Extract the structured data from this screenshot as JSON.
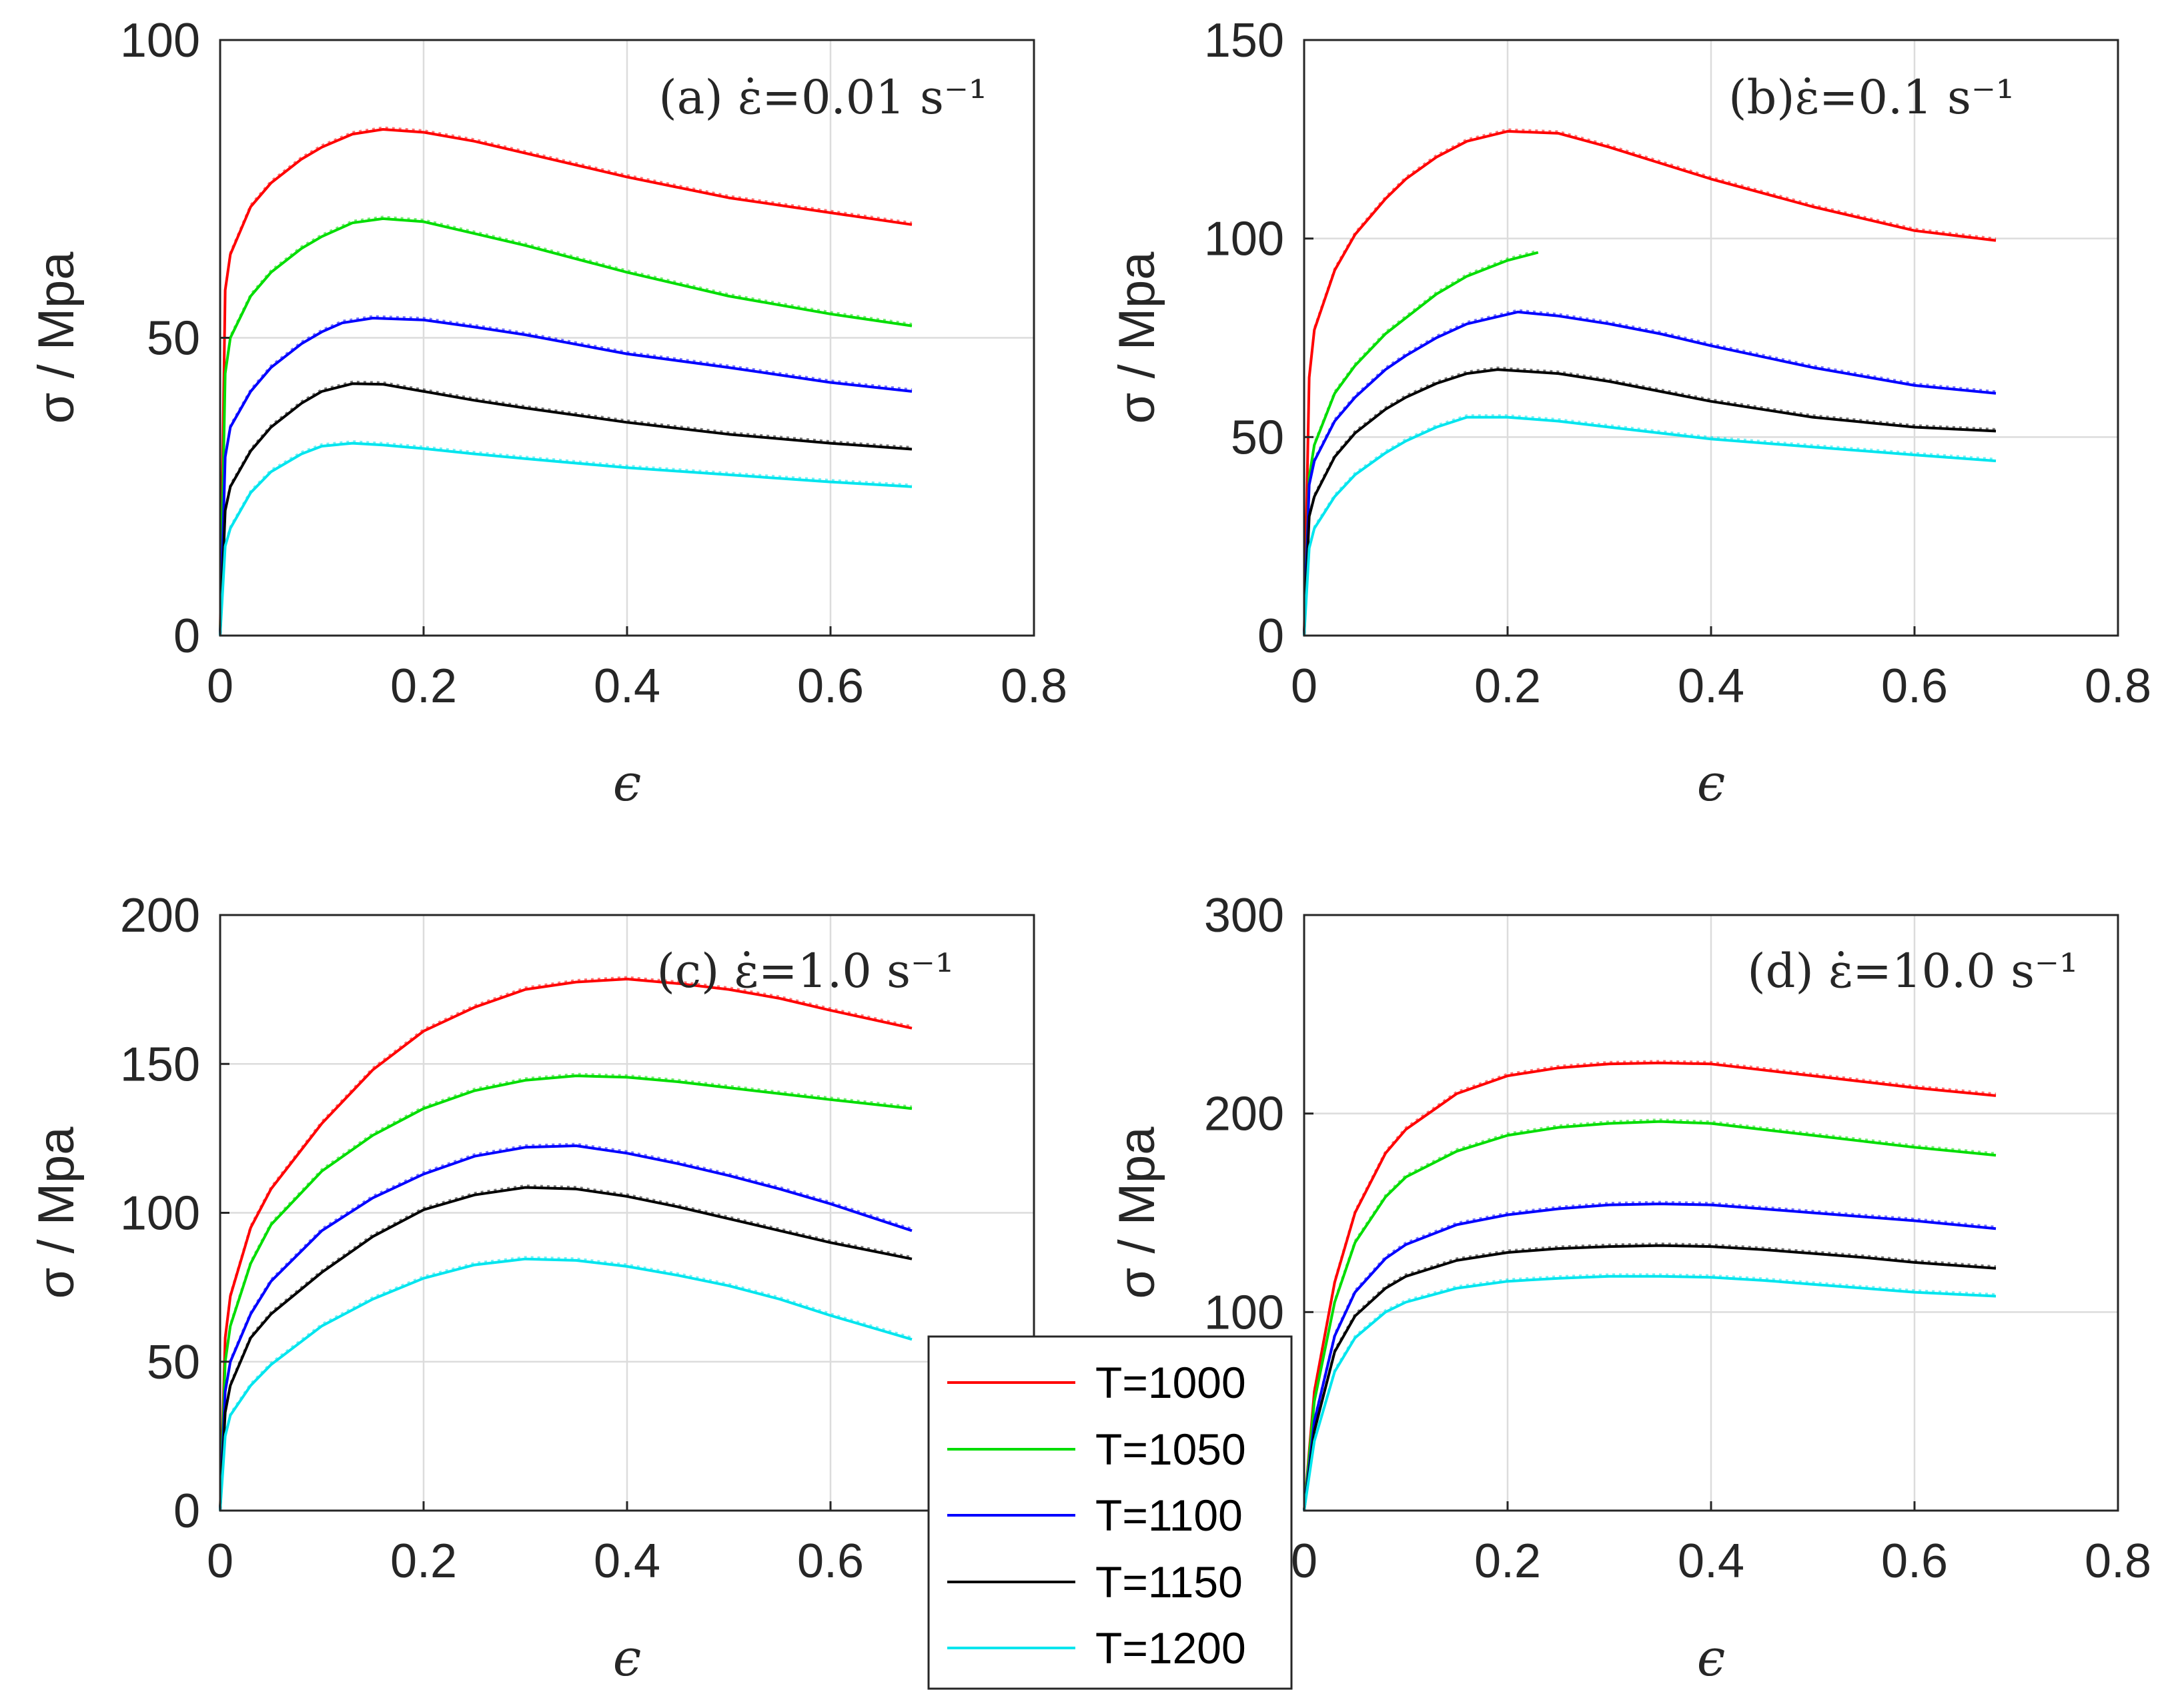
{
  "legend": {
    "entries": [
      {
        "label": "T=1000",
        "color": "#ff0000"
      },
      {
        "label": "T=1050",
        "color": "#00dd00"
      },
      {
        "label": "T=1100",
        "color": "#0000ff"
      },
      {
        "label": "T=1150",
        "color": "#000000"
      },
      {
        "label": "T=1200",
        "color": "#00e5ee"
      }
    ]
  },
  "chart_data": [
    {
      "type": "line",
      "title": "(a) ε̇=0.01 s⁻¹",
      "xlabel": "ϵ",
      "ylabel": "σ / Mpa",
      "xlim": [
        0,
        0.8
      ],
      "ylim": [
        0,
        100
      ],
      "xticks": [
        "0",
        "0.2",
        "0.4",
        "0.6",
        "0.8"
      ],
      "yticks": [
        "0",
        "50",
        "100"
      ],
      "grid": true,
      "series": [
        {
          "name": "T=1000",
          "x": [
            0,
            0.005,
            0.01,
            0.03,
            0.05,
            0.08,
            0.1,
            0.13,
            0.16,
            0.2,
            0.25,
            0.3,
            0.4,
            0.5,
            0.6,
            0.68
          ],
          "y": [
            0,
            58,
            64,
            72,
            76,
            80,
            82,
            84.2,
            85,
            84.5,
            83,
            81,
            77,
            73.5,
            71,
            69
          ]
        },
        {
          "name": "T=1050",
          "x": [
            0,
            0.005,
            0.01,
            0.03,
            0.05,
            0.08,
            0.1,
            0.13,
            0.16,
            0.2,
            0.25,
            0.3,
            0.4,
            0.5,
            0.6,
            0.68
          ],
          "y": [
            0,
            44,
            50,
            57,
            61,
            65,
            67,
            69.3,
            70,
            69.5,
            67.5,
            65.5,
            61,
            57,
            54,
            52
          ]
        },
        {
          "name": "T=1100",
          "x": [
            0,
            0.005,
            0.01,
            0.03,
            0.05,
            0.08,
            0.1,
            0.12,
            0.15,
            0.2,
            0.25,
            0.3,
            0.4,
            0.5,
            0.6,
            0.68
          ],
          "y": [
            0,
            30,
            35,
            41,
            45,
            49,
            51,
            52.5,
            53.3,
            53,
            51.8,
            50.5,
            47.3,
            45,
            42.5,
            41
          ]
        },
        {
          "name": "T=1150",
          "x": [
            0,
            0.005,
            0.01,
            0.03,
            0.05,
            0.08,
            0.1,
            0.13,
            0.16,
            0.2,
            0.25,
            0.3,
            0.4,
            0.5,
            0.6,
            0.68
          ],
          "y": [
            0,
            21,
            25,
            31,
            35,
            39,
            41,
            42.3,
            42.2,
            41,
            39.5,
            38.2,
            35.8,
            33.8,
            32.3,
            31.3
          ]
        },
        {
          "name": "T=1200",
          "x": [
            0,
            0.005,
            0.01,
            0.03,
            0.05,
            0.08,
            0.1,
            0.13,
            0.16,
            0.2,
            0.25,
            0.3,
            0.4,
            0.5,
            0.6,
            0.68
          ],
          "y": [
            0,
            15,
            18,
            24,
            27.5,
            30.5,
            31.8,
            32.3,
            32,
            31.4,
            30.5,
            29.7,
            28.2,
            27,
            25.8,
            25
          ]
        }
      ]
    },
    {
      "type": "line",
      "title": "(b)ε̇=0.1 s⁻¹",
      "xlabel": "ϵ",
      "ylabel": "σ / Mpa",
      "xlim": [
        0,
        0.8
      ],
      "ylim": [
        0,
        150
      ],
      "xticks": [
        "0",
        "0.2",
        "0.4",
        "0.6",
        "0.8"
      ],
      "yticks": [
        "0",
        "50",
        "100",
        "150"
      ],
      "grid": true,
      "series": [
        {
          "name": "T=1000",
          "x": [
            0,
            0.005,
            0.01,
            0.03,
            0.05,
            0.08,
            0.1,
            0.13,
            0.16,
            0.2,
            0.25,
            0.3,
            0.35,
            0.4,
            0.5,
            0.6,
            0.68
          ],
          "y": [
            0,
            65,
            77,
            92,
            101,
            110,
            115,
            120.5,
            124.5,
            127,
            126.5,
            123,
            119,
            115,
            108,
            102,
            99.5
          ]
        },
        {
          "name": "T=1050",
          "x": [
            0,
            0.005,
            0.01,
            0.03,
            0.05,
            0.08,
            0.1,
            0.13,
            0.16,
            0.2,
            0.23
          ],
          "y": [
            0,
            40,
            48,
            61,
            68,
            76,
            80,
            86,
            90.5,
            94.5,
            96.5
          ]
        },
        {
          "name": "T=1100",
          "x": [
            0,
            0.005,
            0.01,
            0.03,
            0.05,
            0.08,
            0.1,
            0.13,
            0.16,
            0.21,
            0.25,
            0.3,
            0.35,
            0.4,
            0.5,
            0.6,
            0.68
          ],
          "y": [
            0,
            38,
            44,
            54,
            60,
            67,
            70.5,
            75,
            78.5,
            81.5,
            80.5,
            78.5,
            76,
            73,
            67.5,
            63,
            61
          ]
        },
        {
          "name": "T=1150",
          "x": [
            0,
            0.005,
            0.01,
            0.03,
            0.05,
            0.08,
            0.1,
            0.13,
            0.16,
            0.19,
            0.25,
            0.3,
            0.35,
            0.4,
            0.5,
            0.6,
            0.68
          ],
          "y": [
            0,
            30,
            35,
            45,
            51,
            57,
            60,
            63.5,
            66,
            67,
            66,
            64,
            61.5,
            59,
            55,
            52.5,
            51.5
          ]
        },
        {
          "name": "T=1200",
          "x": [
            0,
            0.005,
            0.01,
            0.03,
            0.05,
            0.08,
            0.1,
            0.13,
            0.16,
            0.2,
            0.25,
            0.3,
            0.4,
            0.5,
            0.6,
            0.68
          ],
          "y": [
            0,
            22,
            27,
            35,
            40.5,
            46,
            49,
            52.5,
            55,
            55,
            54,
            52.5,
            49.5,
            47.5,
            45.5,
            44
          ]
        }
      ]
    },
    {
      "type": "line",
      "title": "(c) ε̇=1.0 s⁻¹",
      "xlabel": "ϵ",
      "ylabel": "σ / Mpa",
      "xlim": [
        0,
        0.8
      ],
      "ylim": [
        0,
        200
      ],
      "xticks": [
        "0",
        "0.2",
        "0.4",
        "0.6"
      ],
      "yticks": [
        "0",
        "50",
        "100",
        "150",
        "200"
      ],
      "grid": true,
      "series": [
        {
          "name": "T=1000",
          "x": [
            0,
            0.005,
            0.01,
            0.03,
            0.05,
            0.1,
            0.15,
            0.2,
            0.25,
            0.3,
            0.35,
            0.4,
            0.45,
            0.5,
            0.55,
            0.6,
            0.68
          ],
          "y": [
            0,
            58,
            72,
            95,
            108,
            130,
            148,
            161,
            169,
            175,
            177.5,
            178.5,
            177,
            175,
            172,
            168,
            162
          ]
        },
        {
          "name": "T=1050",
          "x": [
            0,
            0.005,
            0.01,
            0.03,
            0.05,
            0.1,
            0.15,
            0.2,
            0.25,
            0.3,
            0.35,
            0.4,
            0.45,
            0.5,
            0.55,
            0.6,
            0.68
          ],
          "y": [
            0,
            50,
            62,
            83,
            96,
            114,
            126,
            135,
            141,
            144.5,
            146,
            145.5,
            144,
            142,
            140,
            138,
            135
          ]
        },
        {
          "name": "T=1100",
          "x": [
            0,
            0.005,
            0.01,
            0.03,
            0.05,
            0.1,
            0.15,
            0.2,
            0.25,
            0.3,
            0.35,
            0.4,
            0.45,
            0.5,
            0.55,
            0.6,
            0.68
          ],
          "y": [
            0,
            40,
            50,
            66,
            77,
            94,
            105,
            113,
            119,
            122,
            122.5,
            120,
            116.5,
            112.5,
            108,
            103,
            94
          ]
        },
        {
          "name": "T=1150",
          "x": [
            0,
            0.005,
            0.01,
            0.03,
            0.05,
            0.1,
            0.15,
            0.2,
            0.25,
            0.3,
            0.35,
            0.4,
            0.45,
            0.5,
            0.55,
            0.6,
            0.68
          ],
          "y": [
            0,
            33,
            42,
            58,
            66,
            80,
            92,
            101,
            106,
            108.5,
            108,
            105.5,
            102,
            98,
            94,
            90,
            84.5
          ]
        },
        {
          "name": "T=1200",
          "x": [
            0,
            0.005,
            0.01,
            0.03,
            0.05,
            0.1,
            0.15,
            0.2,
            0.25,
            0.3,
            0.35,
            0.4,
            0.45,
            0.5,
            0.55,
            0.6,
            0.68
          ],
          "y": [
            0,
            25,
            32,
            42,
            49,
            62,
            71,
            78,
            82.5,
            84.5,
            84,
            82,
            79,
            75.5,
            71,
            65.5,
            57.5
          ]
        }
      ]
    },
    {
      "type": "line",
      "title": "(d) ε̇=10.0 s⁻¹",
      "xlabel": "ϵ",
      "ylabel": "σ / Mpa",
      "xlim": [
        0,
        0.8
      ],
      "ylim": [
        0,
        300
      ],
      "xticks": [
        "0",
        "0.2",
        "0.4",
        "0.6",
        "0.8"
      ],
      "yticks": [
        "0",
        "100",
        "200",
        "300"
      ],
      "grid": true,
      "series": [
        {
          "name": "T=1000",
          "x": [
            0,
            0.01,
            0.03,
            0.05,
            0.08,
            0.1,
            0.15,
            0.2,
            0.25,
            0.3,
            0.35,
            0.4,
            0.45,
            0.5,
            0.55,
            0.6,
            0.68
          ],
          "y": [
            0,
            60,
            115,
            150,
            180,
            192,
            210,
            219,
            223,
            225,
            225.5,
            225,
            222,
            219,
            216,
            213,
            209
          ]
        },
        {
          "name": "T=1050",
          "x": [
            0,
            0.01,
            0.03,
            0.05,
            0.08,
            0.1,
            0.15,
            0.2,
            0.25,
            0.3,
            0.35,
            0.4,
            0.45,
            0.5,
            0.55,
            0.6,
            0.68
          ],
          "y": [
            0,
            55,
            105,
            135,
            158,
            168,
            181,
            189,
            193,
            195,
            196,
            195,
            192,
            189,
            186,
            183,
            179
          ]
        },
        {
          "name": "T=1100",
          "x": [
            0,
            0.01,
            0.03,
            0.05,
            0.08,
            0.1,
            0.15,
            0.2,
            0.25,
            0.3,
            0.35,
            0.4,
            0.45,
            0.5,
            0.55,
            0.6,
            0.68
          ],
          "y": [
            0,
            45,
            88,
            110,
            127,
            134,
            144,
            149,
            152,
            154,
            154.5,
            154,
            152,
            150,
            148,
            146,
            142
          ]
        },
        {
          "name": "T=1150",
          "x": [
            0,
            0.01,
            0.03,
            0.05,
            0.08,
            0.1,
            0.15,
            0.2,
            0.25,
            0.3,
            0.35,
            0.4,
            0.45,
            0.5,
            0.55,
            0.6,
            0.68
          ],
          "y": [
            0,
            40,
            80,
            98,
            112,
            118,
            126,
            130,
            132,
            133,
            133.5,
            133,
            131.5,
            129.5,
            127.5,
            125,
            122
          ]
        },
        {
          "name": "T=1200",
          "x": [
            0,
            0.01,
            0.03,
            0.05,
            0.08,
            0.1,
            0.15,
            0.2,
            0.25,
            0.3,
            0.35,
            0.4,
            0.45,
            0.5,
            0.55,
            0.6,
            0.68
          ],
          "y": [
            0,
            35,
            70,
            87,
            100,
            105,
            112,
            115.5,
            117,
            118,
            118,
            117.5,
            116,
            114,
            112,
            110,
            108
          ]
        }
      ]
    }
  ]
}
